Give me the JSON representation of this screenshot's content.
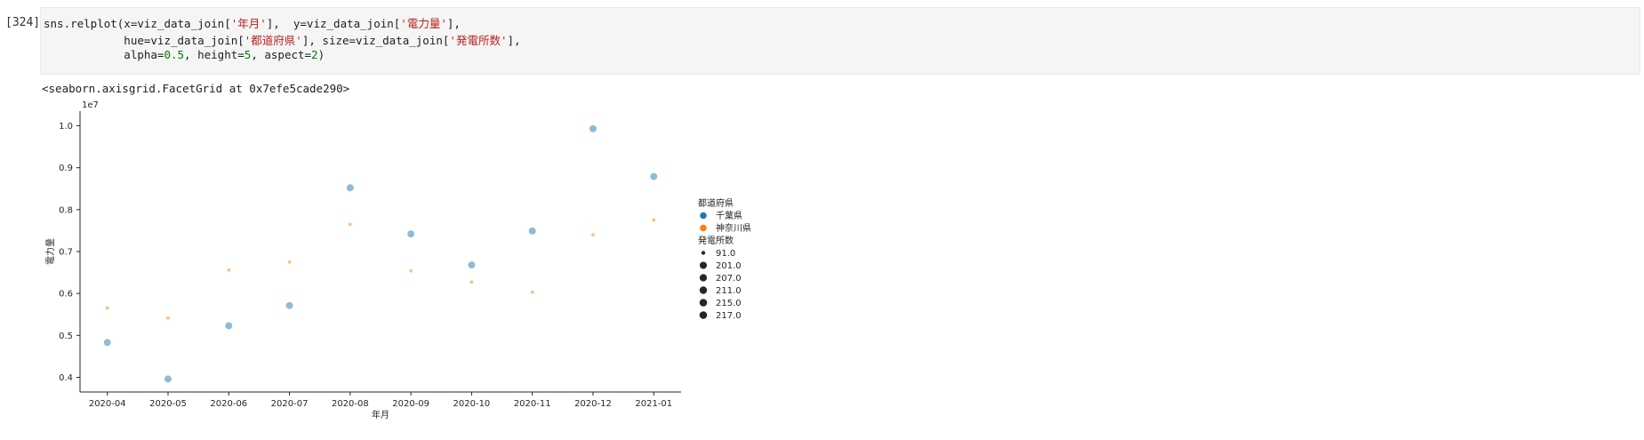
{
  "cell": {
    "prompt": "[324]",
    "code_lines": [
      [
        [
          "sns.relplot(x=viz_data_join[",
          ""
        ],
        [
          "'年月'",
          "str"
        ],
        [
          "],  y=viz_data_join[",
          ""
        ],
        [
          "'電力量'",
          "str"
        ],
        [
          "],",
          ""
        ]
      ],
      [
        [
          "            hue=viz_data_join[",
          ""
        ],
        [
          "'都道府県'",
          "str"
        ],
        [
          "], size=viz_data_join[",
          ""
        ],
        [
          "'発電所数'",
          "str"
        ],
        [
          "],",
          ""
        ]
      ],
      [
        [
          "            alpha=",
          ""
        ],
        [
          "0.5",
          "num"
        ],
        [
          ", height=",
          ""
        ],
        [
          "5",
          "num"
        ],
        [
          ", aspect=",
          ""
        ],
        [
          "2",
          "num"
        ],
        [
          ")",
          ""
        ]
      ]
    ],
    "output_repr": "<seaborn.axisgrid.FacetGrid at 0x7efe5cade290>"
  },
  "chart_data": {
    "type": "scatter",
    "xlabel": "年月",
    "ylabel": "電力量",
    "y_offset_label": "1e7",
    "categories": [
      "2020-04",
      "2020-05",
      "2020-06",
      "2020-07",
      "2020-08",
      "2020-09",
      "2020-10",
      "2020-11",
      "2020-12",
      "2021-01"
    ],
    "ylim": [
      0.365,
      1.035
    ],
    "yticks": [
      0.4,
      0.5,
      0.6,
      0.7,
      0.8,
      0.9,
      1.0
    ],
    "ytick_labels": [
      "0.4",
      "0.5",
      "0.6",
      "0.7",
      "0.8",
      "0.9",
      "1.0"
    ],
    "grid": false,
    "alpha": 0.5,
    "series": [
      {
        "name": "千葉県",
        "color": "#1f77b4",
        "values": [
          0.483,
          0.396,
          0.523,
          0.571,
          0.852,
          0.742,
          0.668,
          0.749,
          0.993,
          0.879
        ],
        "sizes": [
          215,
          215,
          215,
          215,
          217,
          215,
          215,
          215,
          217,
          215
        ]
      },
      {
        "name": "神奈川県",
        "color": "#ff7f0e",
        "values": [
          0.565,
          0.541,
          0.656,
          0.675,
          0.765,
          0.654,
          0.627,
          0.603,
          0.74,
          0.775
        ],
        "sizes": [
          91,
          91,
          91,
          91,
          91,
          91,
          91,
          91,
          91,
          91
        ]
      }
    ],
    "legend": {
      "placement": "right",
      "hue_title": "都道府県",
      "hue_entries": [
        {
          "label": "千葉県",
          "color": "#1f77b4"
        },
        {
          "label": "神奈川県",
          "color": "#ff7f0e"
        }
      ],
      "size_title": "発電所数",
      "size_entries": [
        {
          "label": "91.0",
          "value": 91.0
        },
        {
          "label": "201.0",
          "value": 201.0
        },
        {
          "label": "207.0",
          "value": 207.0
        },
        {
          "label": "211.0",
          "value": 211.0
        },
        {
          "label": "215.0",
          "value": 215.0
        },
        {
          "label": "217.0",
          "value": 217.0
        }
      ]
    }
  }
}
